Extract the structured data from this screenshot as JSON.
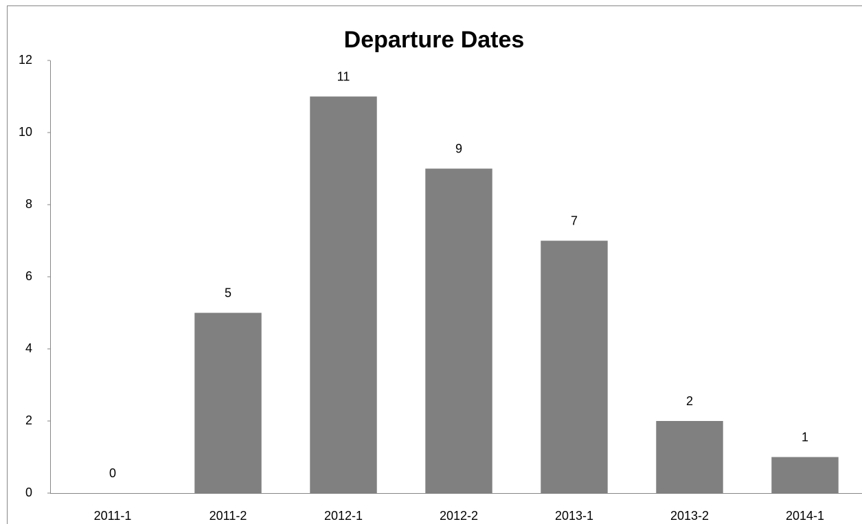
{
  "chart_data": {
    "type": "bar",
    "title": "Departure Dates",
    "categories": [
      "2011-1",
      "2011-2",
      "2012-1",
      "2012-2",
      "2013-1",
      "2013-2",
      "2014-1"
    ],
    "values": [
      0,
      5,
      11,
      9,
      7,
      2,
      1
    ],
    "color": "#808080",
    "ylim": [
      0,
      12
    ],
    "yticks": [
      0,
      2,
      4,
      6,
      8,
      10,
      12
    ],
    "grid": false,
    "data_labels": true
  }
}
